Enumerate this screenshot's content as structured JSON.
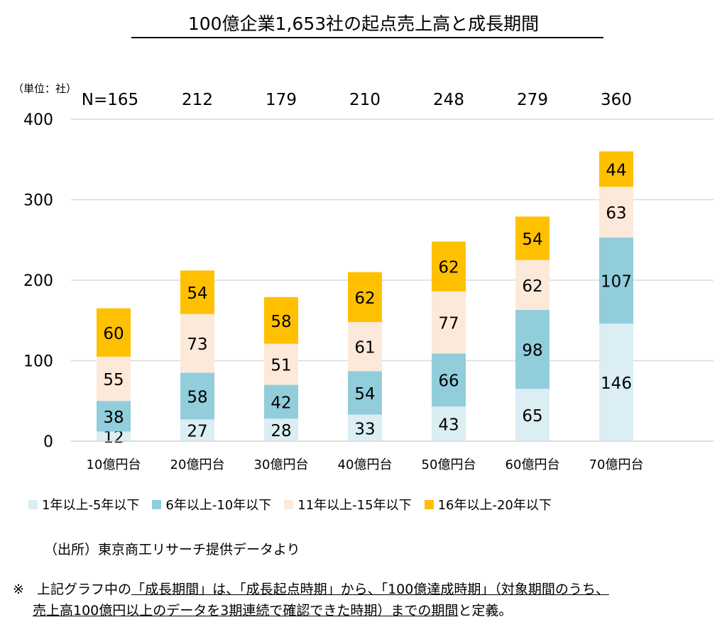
{
  "chart_data": {
    "type": "bar",
    "stacked": true,
    "title": "100億企業1,653社の起点売上高と成長期間",
    "unit_label": "（単位：社）",
    "categories": [
      "10億円台",
      "20億円台",
      "30億円台",
      "40億円台",
      "50億円台",
      "60億円台",
      "70億円台"
    ],
    "totals_prefix": "N=",
    "totals": [
      165,
      212,
      179,
      210,
      248,
      279,
      360
    ],
    "series": [
      {
        "name": "1年以上-5年以下",
        "color": "#DAEEF3",
        "values": [
          12,
          27,
          28,
          33,
          43,
          65,
          146
        ]
      },
      {
        "name": "6年以上-10年以下",
        "color": "#92CDDC",
        "values": [
          38,
          58,
          42,
          54,
          66,
          98,
          107
        ]
      },
      {
        "name": "11年以上-15年以下",
        "color": "#FDE9D9",
        "values": [
          55,
          73,
          51,
          61,
          77,
          62,
          63
        ]
      },
      {
        "name": "16年以上-20年以下",
        "color": "#FFC000",
        "values": [
          60,
          54,
          58,
          62,
          62,
          54,
          44
        ]
      }
    ],
    "ylim": [
      0,
      400
    ],
    "yticks": [
      0,
      100,
      200,
      300,
      400
    ],
    "grid": true,
    "legend_position": "bottom"
  },
  "source": "（出所）東京商工リサーチ提供データより",
  "note": {
    "mark": "※",
    "line1_plain": "上記グラフ中の",
    "line1_underlined": "「成長期間」は、「成長起点時期」から、「100億達成時期」（対象期間のうち、",
    "line2_underlined": "売上高100億円以上のデータを3期連続で確認できた時期）までの期間",
    "line2_plain": "と定義。"
  }
}
